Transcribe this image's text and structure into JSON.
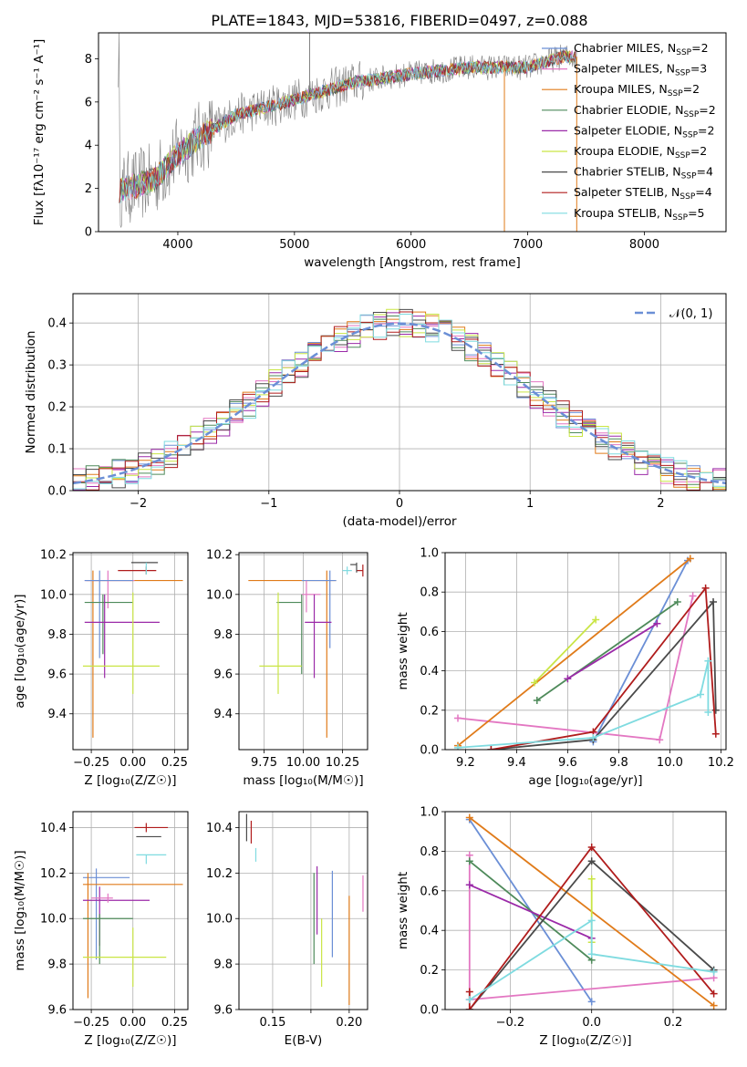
{
  "figure": {
    "title": "PLATE=1843, MJD=53816, FIBERID=0497, z=0.088"
  },
  "chart_data": [
    {
      "id": "spectrum",
      "type": "line",
      "xlabel": "wavelength [Angstrom, rest frame]",
      "ylabel": "Flux [fλ10⁻¹⁷ erg cm⁻² s⁻¹ A⁻¹]",
      "xlim": [
        3320,
        8700
      ],
      "ylim": [
        0,
        9.2
      ],
      "xticks": [
        4000,
        5000,
        6000,
        7000,
        8000
      ],
      "yticks": [
        0,
        2,
        4,
        6,
        8
      ],
      "grid": false,
      "legend_placement": "right",
      "trend_x": [
        3500,
        3800,
        4000,
        4200,
        4500,
        5000,
        5500,
        6000,
        6500,
        7000,
        7300
      ],
      "trend_y": [
        1.9,
        2.4,
        3.6,
        4.4,
        5.4,
        6.1,
        6.9,
        7.3,
        7.6,
        7.6,
        8.1
      ],
      "series": [
        {
          "label": "Chabrier MILES, N",
          "sub": "SSP",
          "suffix": "=2",
          "color": "#6b8fd6"
        },
        {
          "label": "Salpeter MILES, N",
          "sub": "SSP",
          "suffix": "=3",
          "color": "#e377c2"
        },
        {
          "label": "Kroupa MILES, N",
          "sub": "SSP",
          "suffix": "=2",
          "color": "#e07b1a"
        },
        {
          "label": "Chabrier ELODIE, N",
          "sub": "SSP",
          "suffix": "=2",
          "color": "#4e8a5a"
        },
        {
          "label": "Salpeter ELODIE, N",
          "sub": "SSP",
          "suffix": "=2",
          "color": "#9b2aa8"
        },
        {
          "label": "Kroupa ELODIE, N",
          "sub": "SSP",
          "suffix": "=2",
          "color": "#c9e544"
        },
        {
          "label": "Chabrier STELIB, N",
          "sub": "SSP",
          "suffix": "=4",
          "color": "#4a4a4a"
        },
        {
          "label": "Salpeter STELIB, N",
          "sub": "SSP",
          "suffix": "=4",
          "color": "#b01c1c"
        },
        {
          "label": "Kroupa STELIB, N",
          "sub": "SSP",
          "suffix": "=5",
          "color": "#7fdbe0"
        }
      ]
    },
    {
      "id": "residuals",
      "type": "area",
      "xlabel": "(data-model)/error",
      "ylabel": "Normed distribution",
      "xlim": [
        -2.5,
        2.5
      ],
      "ylim": [
        0,
        0.47
      ],
      "xticks": [
        -2,
        -1,
        0,
        1,
        2
      ],
      "yticks": [
        0.0,
        0.1,
        0.2,
        0.3,
        0.4
      ],
      "grid": true,
      "legend": "𝒩(0, 1)",
      "legend_placement": "top-right"
    },
    {
      "id": "age-vs-z",
      "type": "scatter",
      "xlabel": "Z [log₁₀(Z/Z☉)]",
      "ylabel": "age  [log₁₀(age/yr)]",
      "xlim": [
        -0.36,
        0.33
      ],
      "ylim": [
        9.22,
        10.21
      ],
      "xticks": [
        -0.25,
        0.0,
        0.25
      ],
      "xticklabels": [
        "−0.25",
        "0.00",
        "0.25"
      ],
      "yticks": [
        9.4,
        9.6,
        9.8,
        10.0,
        10.2
      ],
      "grid": true,
      "points": [
        {
          "x": 0.08,
          "xerr": [
            0.17,
            0.06
          ],
          "y": 10.12,
          "yerr": [
            0.02,
            0.02
          ],
          "color": "#b01c1c"
        },
        {
          "x": 0.05,
          "xerr": [
            0.06,
            0.1
          ],
          "y": 10.16,
          "yerr": [
            0.0,
            0.0
          ],
          "color": "#4a4a4a"
        },
        {
          "x": 0.08,
          "xerr": [
            0.0,
            0.0
          ],
          "y": 10.13,
          "yerr": [
            0.03,
            0.03
          ],
          "color": "#7fdbe0"
        },
        {
          "x": -0.24,
          "xerr": [
            0.04,
            0.54
          ],
          "y": 10.07,
          "yerr": [
            0.79,
            0.05
          ],
          "color": "#e07b1a"
        },
        {
          "x": -0.15,
          "xerr": [
            0.14,
            0.16
          ],
          "y": 10.07,
          "yerr": [
            0.14,
            0.05
          ],
          "color": "#e377c2"
        },
        {
          "x": -0.2,
          "xerr": [
            0.09,
            0.2
          ],
          "y": 10.07,
          "yerr": [
            0.39,
            0.05
          ],
          "color": "#6b8fd6"
        },
        {
          "x": -0.18,
          "xerr": [
            0.11,
            0.18
          ],
          "y": 9.96,
          "yerr": [
            0.26,
            0.04
          ],
          "color": "#4e8a5a"
        },
        {
          "x": -0.17,
          "xerr": [
            0.12,
            0.33
          ],
          "y": 9.86,
          "yerr": [
            0.28,
            0.14
          ],
          "color": "#9b2aa8"
        },
        {
          "x": 0.0,
          "xerr": [
            0.3,
            0.16
          ],
          "y": 9.64,
          "yerr": [
            0.14,
            0.37
          ],
          "color": "#c9e544"
        }
      ]
    },
    {
      "id": "age-vs-mass",
      "type": "scatter",
      "xlabel": "mass [log₁₀(M/M☉)]",
      "xlim": [
        9.59,
        10.41
      ],
      "ylim": [
        9.22,
        10.21
      ],
      "xticks": [
        9.75,
        10.0,
        10.25
      ],
      "xticklabels": [
        "9.75",
        "10.00",
        "10.25"
      ],
      "yticks": [
        9.4,
        9.6,
        9.8,
        10.0,
        10.2
      ],
      "grid": true,
      "points": [
        {
          "x": 10.38,
          "xerr": [
            0.04,
            0.0
          ],
          "y": 10.12,
          "yerr": [
            0.03,
            0.03
          ],
          "color": "#b01c1c"
        },
        {
          "x": 10.34,
          "xerr": [
            0.04,
            0.0
          ],
          "y": 10.15,
          "yerr": [
            0.04,
            0.01
          ],
          "color": "#4a4a4a"
        },
        {
          "x": 10.28,
          "xerr": [
            0.03,
            0.03
          ],
          "y": 10.12,
          "yerr": [
            0.02,
            0.02
          ],
          "color": "#7fdbe0"
        },
        {
          "x": 10.15,
          "xerr": [
            0.5,
            0.06
          ],
          "y": 10.07,
          "yerr": [
            0.79,
            0.05
          ],
          "color": "#e07b1a"
        },
        {
          "x": 10.17,
          "xerr": [
            0.18,
            0.04
          ],
          "y": 10.07,
          "yerr": [
            0.34,
            0.05
          ],
          "color": "#6b8fd6"
        },
        {
          "x": 10.02,
          "xerr": [
            0.03,
            0.09
          ],
          "y": 10.0,
          "yerr": [
            0.09,
            0.07
          ],
          "color": "#e377c2"
        },
        {
          "x": 9.99,
          "xerr": [
            0.16,
            0.0
          ],
          "y": 9.96,
          "yerr": [
            0.36,
            0.04
          ],
          "color": "#4e8a5a"
        },
        {
          "x": 10.07,
          "xerr": [
            0.06,
            0.11
          ],
          "y": 9.86,
          "yerr": [
            0.28,
            0.14
          ],
          "color": "#9b2aa8"
        },
        {
          "x": 9.84,
          "xerr": [
            0.12,
            0.15
          ],
          "y": 9.64,
          "yerr": [
            0.14,
            0.37
          ],
          "color": "#c9e544"
        }
      ]
    },
    {
      "id": "weight-vs-age",
      "type": "line",
      "xlabel": "age  [log₁₀(age/yr)]",
      "ylabel": "mass weight",
      "xlim": [
        9.12,
        10.22
      ],
      "ylim": [
        0,
        1.0
      ],
      "xticks": [
        9.2,
        9.4,
        9.6,
        9.8,
        10.0,
        10.2
      ],
      "xticklabels": [
        "9.2",
        "9.4",
        "9.6",
        "9.8",
        "10.0",
        "10.2"
      ],
      "yticks": [
        0.0,
        0.2,
        0.4,
        0.6,
        0.8,
        1.0
      ],
      "grid": true,
      "series": [
        {
          "color": "#6b8fd6",
          "x": [
            9.7,
            10.07
          ],
          "y": [
            0.04,
            0.96
          ]
        },
        {
          "color": "#e377c2",
          "x": [
            9.17,
            9.96,
            10.09
          ],
          "y": [
            0.16,
            0.05,
            0.78
          ]
        },
        {
          "color": "#e07b1a",
          "x": [
            9.17,
            10.08
          ],
          "y": [
            0.02,
            0.97
          ]
        },
        {
          "color": "#4e8a5a",
          "x": [
            9.48,
            10.03
          ],
          "y": [
            0.25,
            0.75
          ]
        },
        {
          "color": "#9b2aa8",
          "x": [
            9.6,
            9.95
          ],
          "y": [
            0.36,
            0.64
          ]
        },
        {
          "color": "#c9e544",
          "x": [
            9.47,
            9.71
          ],
          "y": [
            0.34,
            0.66
          ]
        },
        {
          "color": "#4a4a4a",
          "x": [
            9.3,
            9.7,
            10.17,
            10.18
          ],
          "y": [
            0.0,
            0.05,
            0.75,
            0.2
          ]
        },
        {
          "color": "#b01c1c",
          "x": [
            9.3,
            9.7,
            10.14,
            10.18
          ],
          "y": [
            0.0,
            0.09,
            0.82,
            0.08
          ]
        },
        {
          "color": "#7fdbe0",
          "x": [
            9.17,
            9.7,
            10.12,
            10.15,
            10.15
          ],
          "y": [
            0.01,
            0.06,
            0.28,
            0.45,
            0.19
          ]
        }
      ]
    },
    {
      "id": "mass-vs-z",
      "type": "scatter",
      "xlabel": "Z [log₁₀(Z/Z☉)]",
      "ylabel": "mass [log₁₀(M/M☉)]",
      "xlim": [
        -0.36,
        0.33
      ],
      "ylim": [
        9.6,
        10.47
      ],
      "xticks": [
        -0.25,
        0.0,
        0.25
      ],
      "xticklabels": [
        "−0.25",
        "0.00",
        "0.25"
      ],
      "yticks": [
        9.6,
        9.8,
        10.0,
        10.2,
        10.4
      ],
      "grid": true,
      "points": [
        {
          "x": 0.08,
          "xerr": [
            0.07,
            0.13
          ],
          "y": 10.4,
          "yerr": [
            0.02,
            0.02
          ],
          "color": "#b01c1c"
        },
        {
          "x": 0.08,
          "xerr": [
            0.06,
            0.09
          ],
          "y": 10.36,
          "yerr": [
            0.0,
            0.0
          ],
          "color": "#4a4a4a"
        },
        {
          "x": 0.08,
          "xerr": [
            0.06,
            0.12
          ],
          "y": 10.28,
          "yerr": [
            0.04,
            0.0
          ],
          "color": "#7fdbe0"
        },
        {
          "x": -0.22,
          "xerr": [
            0.08,
            0.2
          ],
          "y": 10.18,
          "yerr": [
            0.36,
            0.04
          ],
          "color": "#6b8fd6"
        },
        {
          "x": -0.27,
          "xerr": [
            0.03,
            0.57
          ],
          "y": 10.15,
          "yerr": [
            0.5,
            0.05
          ],
          "color": "#e07b1a"
        },
        {
          "x": -0.2,
          "xerr": [
            0.1,
            0.3
          ],
          "y": 10.08,
          "yerr": [
            0.2,
            0.06
          ],
          "color": "#9b2aa8"
        },
        {
          "x": -0.15,
          "xerr": [
            0.1,
            0.03
          ],
          "y": 10.09,
          "yerr": [
            0.02,
            0.02
          ],
          "color": "#e377c2"
        },
        {
          "x": -0.2,
          "xerr": [
            0.1,
            0.2
          ],
          "y": 10.0,
          "yerr": [
            0.2,
            0.02
          ],
          "color": "#4e8a5a"
        },
        {
          "x": 0.0,
          "xerr": [
            0.3,
            0.2
          ],
          "y": 9.83,
          "yerr": [
            0.13,
            0.13
          ],
          "color": "#c9e544"
        }
      ]
    },
    {
      "id": "mass-vs-ebv",
      "type": "scatter",
      "xlabel": "E(B-V)",
      "xlim": [
        0.128,
        0.212
      ],
      "ylim": [
        9.6,
        10.47
      ],
      "xticks": [
        0.15,
        0.175,
        0.2
      ],
      "xticklabels": [
        "0.15",
        "",
        "0.20"
      ],
      "yticks": [
        9.6,
        9.8,
        10.0,
        10.2,
        10.4
      ],
      "grid": true,
      "points": [
        {
          "x": 0.133,
          "xerr": [
            0,
            0
          ],
          "y": 10.4,
          "yerr": [
            0.06,
            0.06
          ],
          "color": "#4a4a4a"
        },
        {
          "x": 0.136,
          "xerr": [
            0,
            0
          ],
          "y": 10.38,
          "yerr": [
            0.05,
            0.05
          ],
          "color": "#b01c1c"
        },
        {
          "x": 0.139,
          "xerr": [
            0,
            0
          ],
          "y": 10.28,
          "yerr": [
            0.03,
            0.03
          ],
          "color": "#7fdbe0"
        },
        {
          "x": 0.177,
          "xerr": [
            0,
            0
          ],
          "y": 10.0,
          "yerr": [
            0.2,
            0.2
          ],
          "color": "#4e8a5a"
        },
        {
          "x": 0.179,
          "xerr": [
            0,
            0
          ],
          "y": 10.08,
          "yerr": [
            0.15,
            0.15
          ],
          "color": "#9b2aa8"
        },
        {
          "x": 0.182,
          "xerr": [
            0,
            0
          ],
          "y": 9.85,
          "yerr": [
            0.15,
            0.15
          ],
          "color": "#c9e544"
        },
        {
          "x": 0.189,
          "xerr": [
            0,
            0
          ],
          "y": 10.02,
          "yerr": [
            0.19,
            0.19
          ],
          "color": "#6b8fd6"
        },
        {
          "x": 0.2,
          "xerr": [
            0,
            0
          ],
          "y": 9.86,
          "yerr": [
            0.24,
            0.24
          ],
          "color": "#e07b1a"
        },
        {
          "x": 0.209,
          "xerr": [
            0,
            0
          ],
          "y": 10.11,
          "yerr": [
            0.08,
            0.08
          ],
          "color": "#e377c2"
        }
      ]
    },
    {
      "id": "weight-vs-z",
      "type": "line",
      "xlabel": "Z [log₁₀(Z/Z☉)]",
      "ylabel": "mass weight",
      "xlim": [
        -0.36,
        0.33
      ],
      "ylim": [
        0,
        1.0
      ],
      "xticks": [
        -0.2,
        0.0,
        0.2
      ],
      "xticklabels": [
        "−0.2",
        "0.0",
        "0.2"
      ],
      "yticks": [
        0.0,
        0.2,
        0.4,
        0.6,
        0.8,
        1.0
      ],
      "grid": true,
      "series": [
        {
          "color": "#6b8fd6",
          "x": [
            -0.3,
            0.0
          ],
          "y": [
            0.96,
            0.04
          ]
        },
        {
          "color": "#e377c2",
          "x": [
            -0.3,
            -0.3,
            0.3
          ],
          "y": [
            0.78,
            0.05,
            0.16
          ]
        },
        {
          "color": "#e07b1a",
          "x": [
            -0.3,
            0.3
          ],
          "y": [
            0.97,
            0.02
          ]
        },
        {
          "color": "#4e8a5a",
          "x": [
            -0.3,
            0.0
          ],
          "y": [
            0.75,
            0.25
          ]
        },
        {
          "color": "#9b2aa8",
          "x": [
            -0.3,
            0.0
          ],
          "y": [
            0.63,
            0.36
          ]
        },
        {
          "color": "#c9e544",
          "x": [
            0.0,
            0.0
          ],
          "y": [
            0.66,
            0.34
          ]
        },
        {
          "color": "#4a4a4a",
          "x": [
            -0.3,
            0.0,
            0.3
          ],
          "y": [
            0.0,
            0.75,
            0.2
          ]
        },
        {
          "color": "#b01c1c",
          "x": [
            -0.3,
            -0.3,
            0.0,
            0.3
          ],
          "y": [
            0.09,
            0.0,
            0.82,
            0.08
          ]
        },
        {
          "color": "#7fdbe0",
          "x": [
            -0.3,
            0.0,
            0.0,
            0.3
          ],
          "y": [
            0.05,
            0.45,
            0.28,
            0.19
          ]
        }
      ]
    }
  ]
}
